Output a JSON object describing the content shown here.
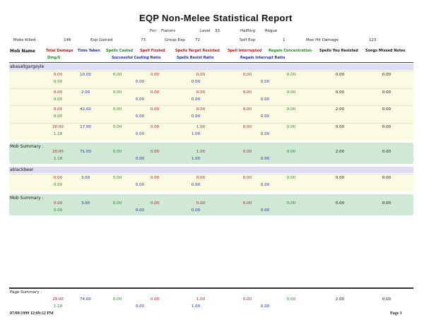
{
  "report": {
    "title": "EQP Non-Melee Statistical Report",
    "for_label": "For:",
    "player": "Flaners",
    "level_label": "Level",
    "level": "33",
    "race": "Halfling",
    "class": "Rogue"
  },
  "stats": {
    "mobs_killed_label": "Mobs Killed",
    "mobs_killed": "146",
    "exp_gained_label": "Exp Gained",
    "exp_gained": "73",
    "group_exp_label": "Group Exp",
    "group_exp": "72",
    "self_exp_label": "Self Exp",
    "self_exp": "1",
    "max_hit_label": "Max Hit Damage",
    "max_hit": "123"
  },
  "columns": {
    "mob_name": "Mob Name",
    "total_damage": "Total Damage",
    "dmg_per_sec": "Dmg/S",
    "time_taken": "Time Taken",
    "spells_casted": "Spells Casted",
    "successful_casting_ratio": "Successful Casting Ratio",
    "spell_fizzled": "Spell Fizzled",
    "spells_target_resisted": "Spells Target Resisted",
    "spells_resist_ratio": "Spells Resist Ratio",
    "spell_interrupted": "Spell Interrupted",
    "regain_interrupt_ratio": "Regain Interrupt Ratio",
    "regain_concentration": "Regain Concentration",
    "spells_you_resisted": "Spells You Resisted",
    "songs_missed_notes": "Songs Missed Notes"
  },
  "groups": [
    {
      "name": "abasaltgargoyle",
      "rows": [
        {
          "dmg": "0.00",
          "dps": "0.00",
          "time": "10.00",
          "casted": "0.00",
          "scr": "0.00",
          "fizzled": "0.00",
          "resisted": "0.00",
          "rr": "0.00",
          "interrupted": "0.00",
          "rir": "0.00",
          "regain": "0.00",
          "you_resisted": "0.00",
          "songs": "0.00"
        },
        {
          "dmg": "0.00",
          "dps": "0.00",
          "time": "2.00",
          "casted": "0.00",
          "scr": "0.00",
          "fizzled": "0.00",
          "resisted": "0.00",
          "rr": "0.00",
          "interrupted": "0.00",
          "rir": "0.00",
          "regain": "0.00",
          "you_resisted": "0.00",
          "songs": "0.00"
        },
        {
          "dmg": "0.00",
          "dps": "0.00",
          "time": "42.00",
          "casted": "0.00",
          "scr": "0.00",
          "fizzled": "0.00",
          "resisted": "0.00",
          "rr": "0.00",
          "interrupted": "0.00",
          "rir": "0.00",
          "regain": "0.00",
          "you_resisted": "2.00",
          "songs": "0.00"
        },
        {
          "dmg": "20.00",
          "dps": "1.18",
          "time": "17.00",
          "casted": "0.00",
          "scr": "0.00",
          "fizzled": "0.00",
          "resisted": "1.00",
          "rr": "1.00",
          "interrupted": "0.00",
          "rir": "0.00",
          "regain": "0.00",
          "you_resisted": "0.00",
          "songs": "0.00"
        }
      ],
      "summary_label": "Mob Summary :",
      "summary": {
        "dmg": "20.00",
        "dps": "1.18",
        "time": "71.00",
        "casted": "0.00",
        "scr": "0.00",
        "fizzled": "0.00",
        "resisted": "1.00",
        "rr": "1.00",
        "interrupted": "0.00",
        "rir": "0.00",
        "regain": "0.00",
        "you_resisted": "2.00",
        "songs": "0.00"
      }
    },
    {
      "name": "ablackbear",
      "rows": [
        {
          "dmg": "0.00",
          "dps": "0.00",
          "time": "3.00",
          "casted": "0.00",
          "scr": "0.00",
          "fizzled": "0.00",
          "resisted": "0.00",
          "rr": "0.00",
          "interrupted": "0.00",
          "rir": "0.00",
          "regain": "0.00",
          "you_resisted": "0.00",
          "songs": "0.00"
        }
      ],
      "summary_label": "Mob Summary :",
      "summary": {
        "dmg": "0.00",
        "dps": "0.00",
        "time": "3.00",
        "casted": "0.00",
        "scr": "0.00",
        "fizzled": "0.00",
        "resisted": "0.00",
        "rr": "0.00",
        "interrupted": "0.00",
        "rir": "0.00",
        "regain": "0.00",
        "you_resisted": "0.00",
        "songs": "0.00"
      }
    }
  ],
  "page_summary": {
    "label": "Page Summary :",
    "values": {
      "dmg": "20.00",
      "dps": "1.18",
      "time": "74.00",
      "casted": "0.00",
      "scr": "0.00",
      "fizzled": "0.00",
      "resisted": "1.00",
      "rr": "1.00",
      "interrupted": "0.00",
      "rir": "0.00",
      "regain": "0.00",
      "you_resisted": "2.00",
      "songs": "0.00"
    }
  },
  "footer": {
    "timestamp": "07/09/1999 12:09:22 PM",
    "page": "Page 1"
  }
}
